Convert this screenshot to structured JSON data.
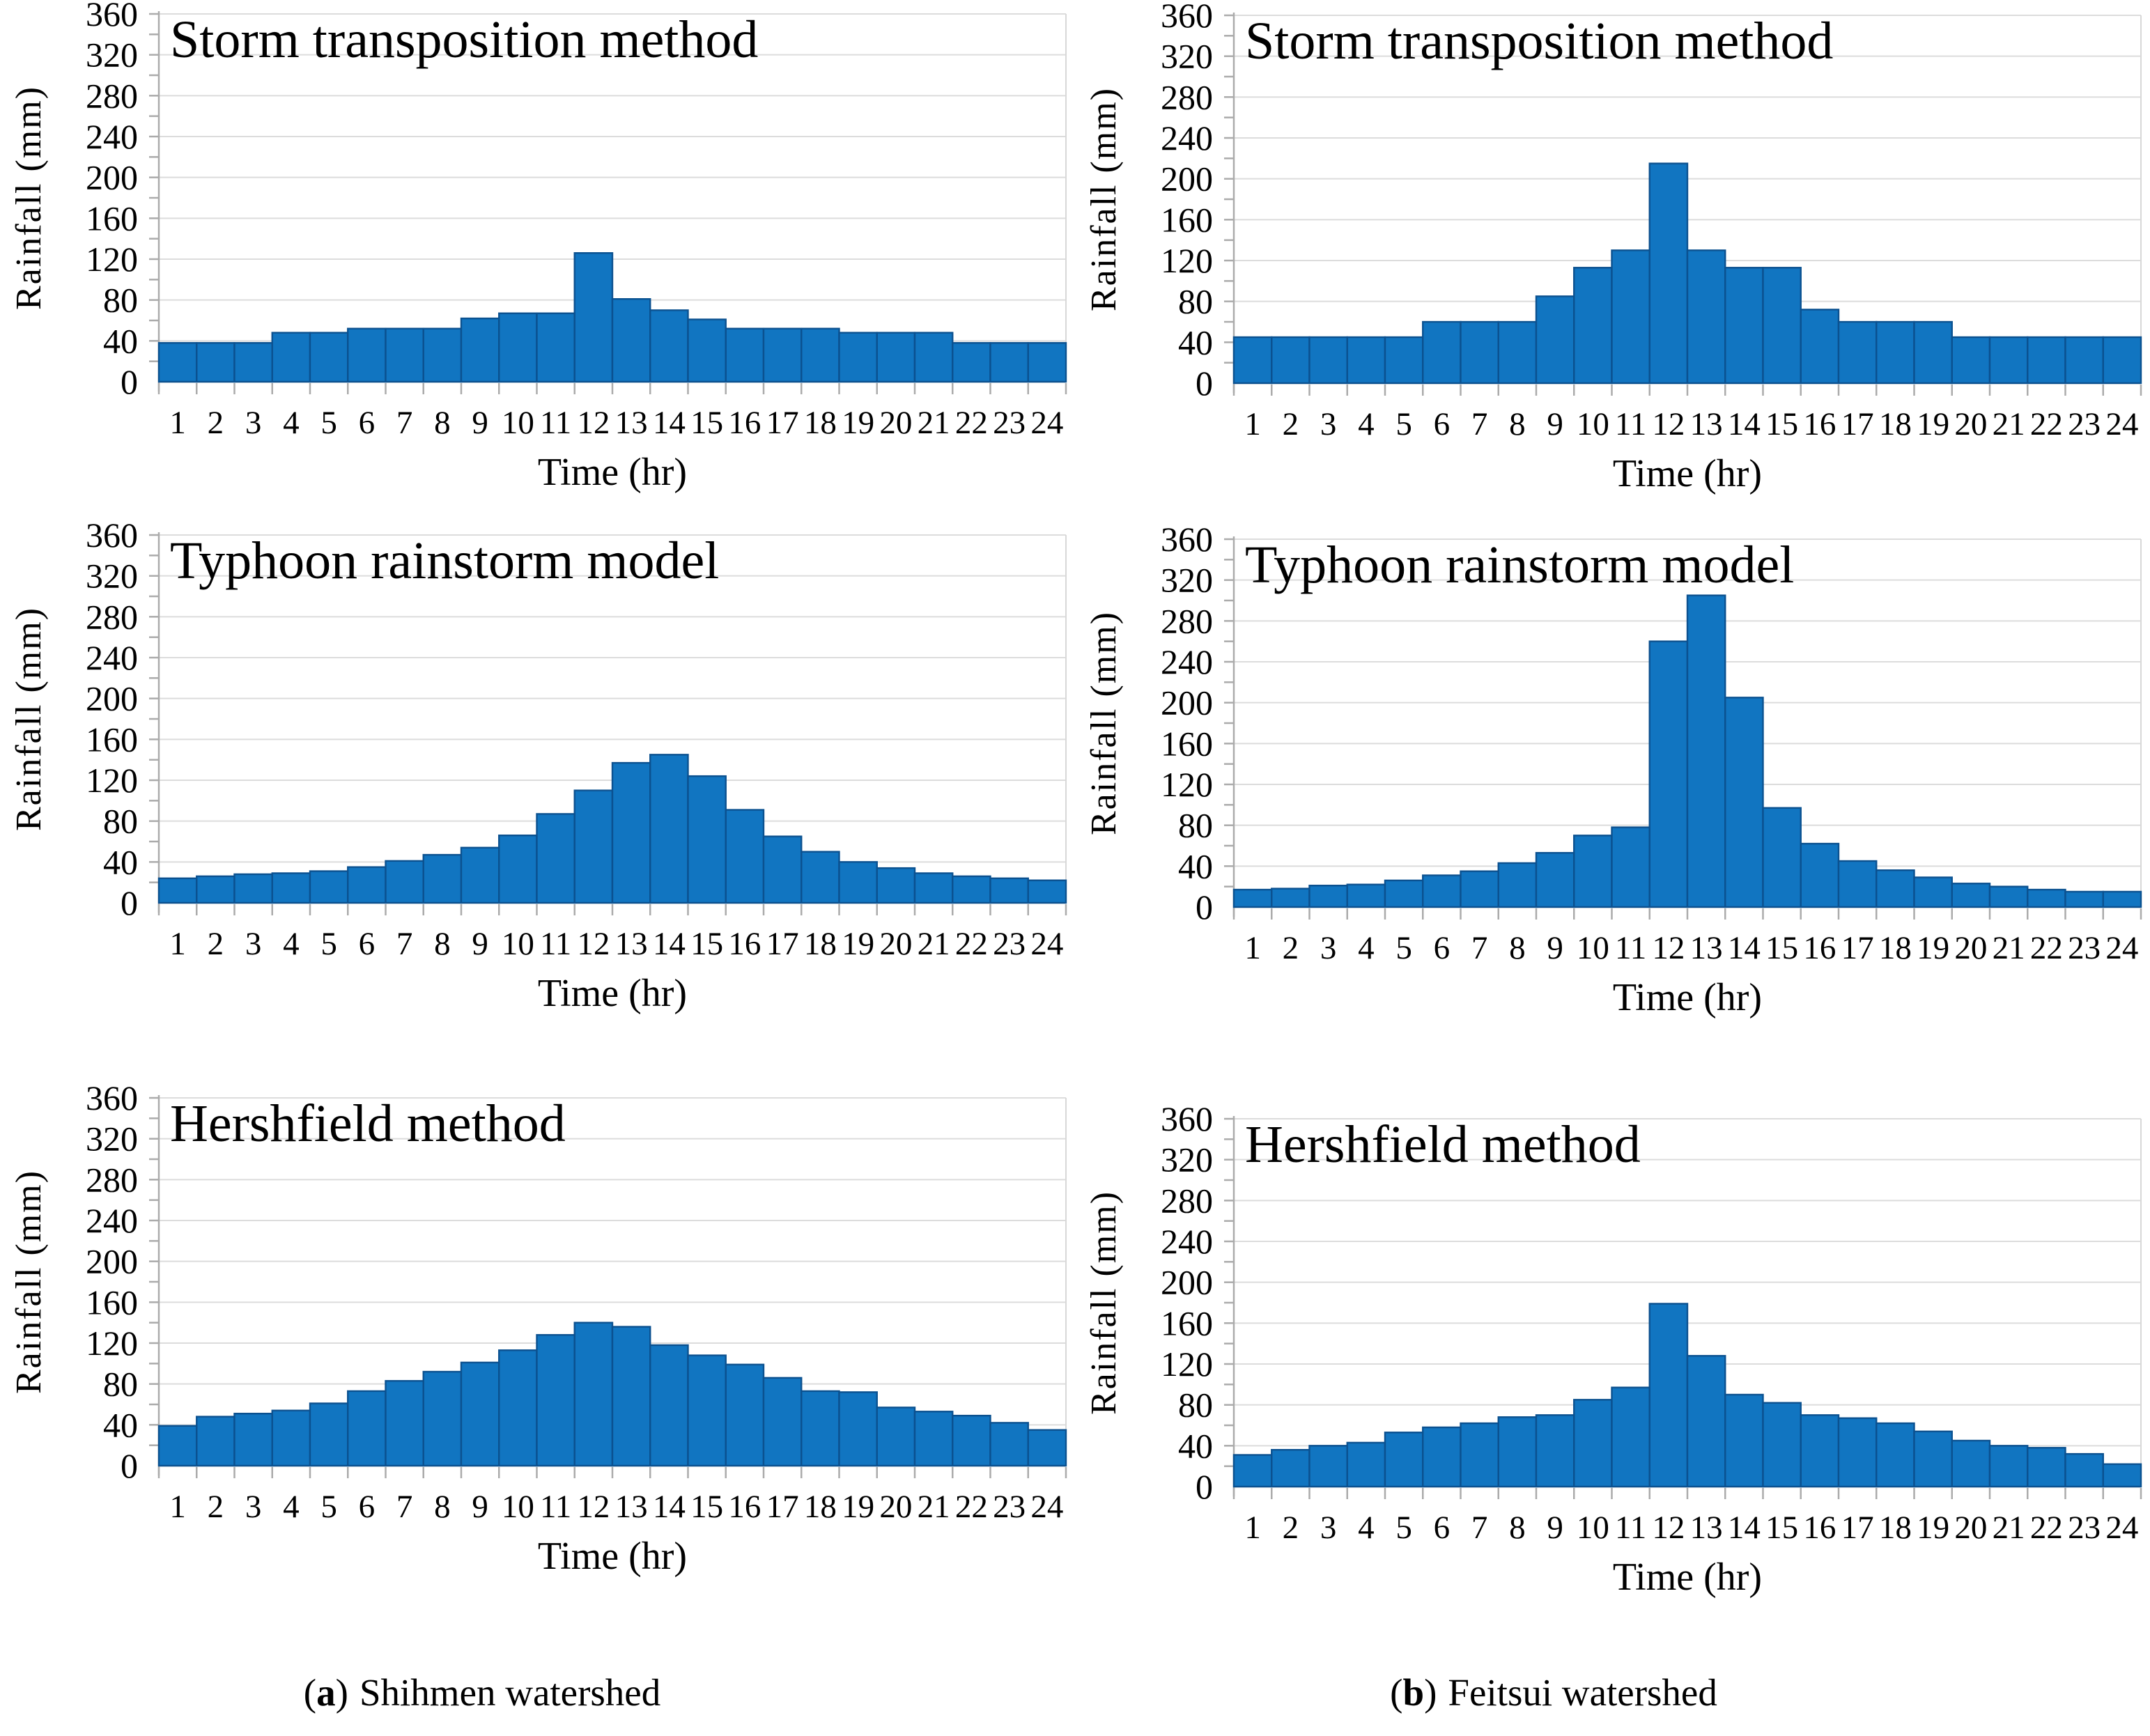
{
  "figure": {
    "captions": [
      {
        "prefix": "(",
        "letter": "a",
        "suffix": ")",
        "text": "Shihmen watershed"
      },
      {
        "prefix": "(",
        "letter": "b",
        "suffix": ")",
        "text": "Feitsui watershed"
      }
    ]
  },
  "colors": {
    "bar_fill": "#1175C1",
    "bar_stroke": "#0B5190",
    "gridline": "#DCDCDC",
    "axis": "#ABABAB",
    "plot_right_border": "#D8D8D8",
    "text": "#000000",
    "background": "#FFFFFF"
  },
  "chart_data": [
    {
      "type": "bar",
      "watershed": "Shihmen",
      "title": "Storm transposition method",
      "xlabel": "Time (hr)",
      "ylabel": "Rainfall (mm)",
      "ylim": [
        0,
        360
      ],
      "ytick_step": 40,
      "ytick_minor_step": 20,
      "grid": true,
      "legend": "none",
      "categories": [
        1,
        2,
        3,
        4,
        5,
        6,
        7,
        8,
        9,
        10,
        11,
        12,
        13,
        14,
        15,
        16,
        17,
        18,
        19,
        20,
        21,
        22,
        23,
        24
      ],
      "values": [
        38,
        38,
        38,
        48,
        48,
        52,
        52,
        52,
        62,
        67,
        67,
        126,
        81,
        70,
        61,
        52,
        52,
        52,
        48,
        48,
        48,
        38,
        38,
        38
      ]
    },
    {
      "type": "bar",
      "watershed": "Feitsui",
      "title": "Storm transposition method",
      "xlabel": "Time (hr)",
      "ylabel": "Rainfall (mm)",
      "ylim": [
        0,
        360
      ],
      "ytick_step": 40,
      "ytick_minor_step": 20,
      "grid": true,
      "legend": "none",
      "categories": [
        1,
        2,
        3,
        4,
        5,
        6,
        7,
        8,
        9,
        10,
        11,
        12,
        13,
        14,
        15,
        16,
        17,
        18,
        19,
        20,
        21,
        22,
        23,
        24
      ],
      "values": [
        45,
        45,
        45,
        45,
        45,
        60,
        60,
        60,
        85,
        113,
        130,
        215,
        130,
        113,
        113,
        72,
        60,
        60,
        60,
        45,
        45,
        45,
        45,
        45
      ]
    },
    {
      "type": "bar",
      "watershed": "Shihmen",
      "title": "Typhoon rainstorm model",
      "xlabel": "Time (hr)",
      "ylabel": "Rainfall (mm)",
      "ylim": [
        0,
        360
      ],
      "ytick_step": 40,
      "ytick_minor_step": 20,
      "grid": true,
      "legend": "none",
      "categories": [
        1,
        2,
        3,
        4,
        5,
        6,
        7,
        8,
        9,
        10,
        11,
        12,
        13,
        14,
        15,
        16,
        17,
        18,
        19,
        20,
        21,
        22,
        23,
        24
      ],
      "values": [
        24,
        26,
        28,
        29,
        31,
        35,
        41,
        47,
        54,
        66,
        87,
        110,
        137,
        145,
        124,
        91,
        65,
        50,
        40,
        34,
        29,
        26,
        24,
        22
      ]
    },
    {
      "type": "bar",
      "watershed": "Feitsui",
      "title": "Typhoon rainstorm model",
      "xlabel": "Time (hr)",
      "ylabel": "Rainfall (mm)",
      "ylim": [
        0,
        360
      ],
      "ytick_step": 40,
      "ytick_minor_step": 20,
      "grid": true,
      "legend": "none",
      "categories": [
        1,
        2,
        3,
        4,
        5,
        6,
        7,
        8,
        9,
        10,
        11,
        12,
        13,
        14,
        15,
        16,
        17,
        18,
        19,
        20,
        21,
        22,
        23,
        24
      ],
      "values": [
        17,
        18,
        21,
        22,
        26,
        31,
        35,
        43,
        53,
        70,
        78,
        260,
        305,
        205,
        97,
        62,
        45,
        36,
        29,
        23,
        20,
        17,
        15,
        15
      ]
    },
    {
      "type": "bar",
      "watershed": "Shihmen",
      "title": "Hershfield method",
      "xlabel": "Time (hr)",
      "ylabel": "Rainfall (mm)",
      "ylim": [
        0,
        360
      ],
      "ytick_step": 40,
      "ytick_minor_step": 20,
      "grid": true,
      "legend": "none",
      "categories": [
        1,
        2,
        3,
        4,
        5,
        6,
        7,
        8,
        9,
        10,
        11,
        12,
        13,
        14,
        15,
        16,
        17,
        18,
        19,
        20,
        21,
        22,
        23,
        24
      ],
      "values": [
        39,
        48,
        51,
        54,
        61,
        73,
        83,
        92,
        101,
        113,
        128,
        140,
        136,
        118,
        108,
        99,
        86,
        73,
        72,
        57,
        53,
        49,
        42,
        35
      ]
    },
    {
      "type": "bar",
      "watershed": "Feitsui",
      "title": "Hershfield method",
      "xlabel": "Time (hr)",
      "ylabel": "Rainfall (mm)",
      "ylim": [
        0,
        360
      ],
      "ytick_step": 40,
      "ytick_minor_step": 20,
      "grid": true,
      "legend": "none",
      "categories": [
        1,
        2,
        3,
        4,
        5,
        6,
        7,
        8,
        9,
        10,
        11,
        12,
        13,
        14,
        15,
        16,
        17,
        18,
        19,
        20,
        21,
        22,
        23,
        24
      ],
      "values": [
        31,
        36,
        40,
        43,
        53,
        58,
        62,
        68,
        70,
        85,
        97,
        179,
        128,
        90,
        82,
        70,
        67,
        62,
        54,
        45,
        40,
        38,
        32,
        22
      ]
    }
  ]
}
